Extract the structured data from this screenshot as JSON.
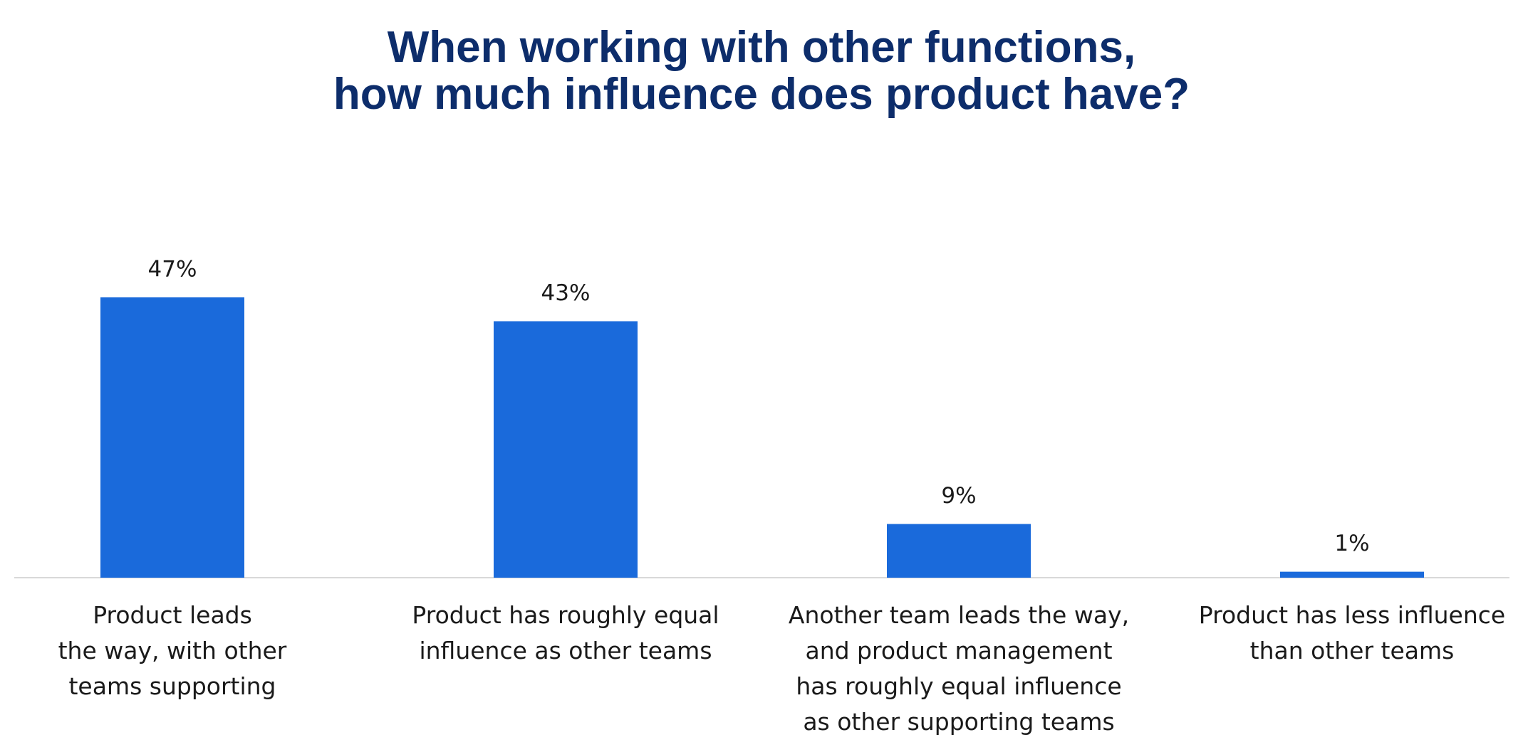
{
  "chart_data": {
    "type": "bar",
    "title": "When working with other functions,\nhow much influence does product have?",
    "categories": [
      "Product leads\nthe way, with other\nteams supporting",
      "Product has roughly equal\ninfluence as other teams",
      "Another team leads the way,\nand product management\nhas roughly equal influence\nas other supporting teams",
      "Product has less influence\nthan other teams"
    ],
    "values": [
      47,
      43,
      9,
      1
    ],
    "value_labels": [
      "47%",
      "43%",
      "9%",
      "1%"
    ],
    "color": "#1a6adb",
    "ylim": [
      0,
      60
    ]
  }
}
